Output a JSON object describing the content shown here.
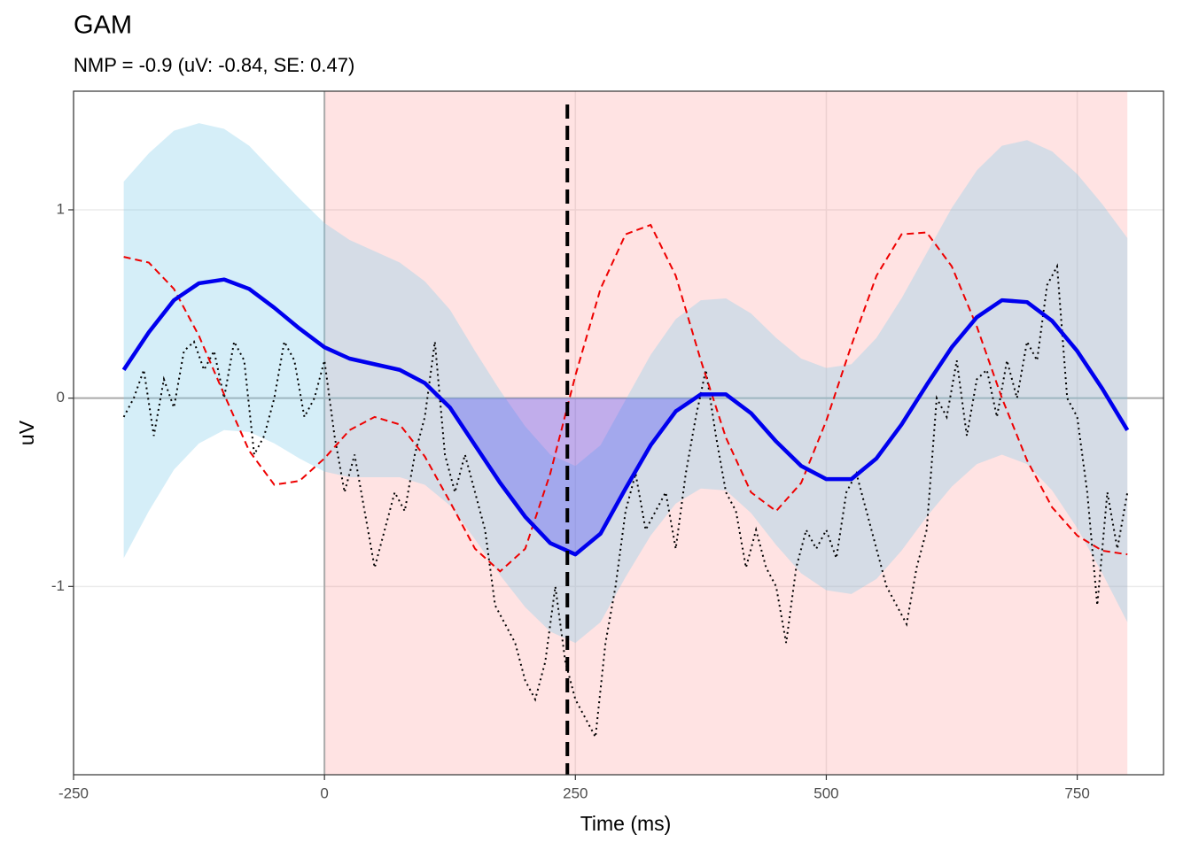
{
  "chart_data": {
    "type": "gam",
    "title": "GAM",
    "subtitle": "NMP = -0.9 (uV: -0.84, SE: 0.47)",
    "x_label": "Time (ms)",
    "y_label": "uV",
    "xlim": [
      -250,
      836
    ],
    "ylim": [
      -2.0,
      1.63
    ],
    "xticks": [
      -250,
      0,
      250,
      500,
      750
    ],
    "yticks": [
      -1,
      0,
      1
    ],
    "grid": true,
    "window": [
      0,
      800
    ],
    "window_color": "#ff0000",
    "highlight": [
      110,
      385
    ],
    "highlight_color": "#3333ff",
    "vline": 242,
    "ribbon_color": "#87ceeb",
    "fit_color": "#0000ee",
    "reference_color": "#ee0000",
    "raw_color": "#000000",
    "x": [
      -200,
      -175,
      -150,
      -125,
      -100,
      -75,
      -50,
      -25,
      0,
      25,
      50,
      75,
      100,
      125,
      150,
      175,
      200,
      225,
      250,
      275,
      300,
      325,
      350,
      375,
      400,
      425,
      450,
      475,
      500,
      525,
      550,
      575,
      600,
      625,
      650,
      675,
      700,
      725,
      750,
      775,
      800
    ],
    "fit": [
      0.15,
      0.35,
      0.52,
      0.61,
      0.63,
      0.58,
      0.48,
      0.37,
      0.27,
      0.21,
      0.18,
      0.15,
      0.08,
      -0.05,
      -0.25,
      -0.45,
      -0.63,
      -0.77,
      -0.83,
      -0.72,
      -0.48,
      -0.25,
      -0.07,
      0.02,
      0.02,
      -0.08,
      -0.23,
      -0.36,
      -0.43,
      -0.43,
      -0.32,
      -0.14,
      0.07,
      0.27,
      0.43,
      0.52,
      0.51,
      0.41,
      0.25,
      0.05,
      -0.17
    ],
    "upper": [
      1.15,
      1.3,
      1.42,
      1.46,
      1.43,
      1.34,
      1.2,
      1.06,
      0.93,
      0.84,
      0.78,
      0.72,
      0.62,
      0.47,
      0.25,
      0.04,
      -0.15,
      -0.3,
      -0.36,
      -0.25,
      -0.01,
      0.23,
      0.42,
      0.52,
      0.53,
      0.45,
      0.32,
      0.21,
      0.16,
      0.18,
      0.32,
      0.53,
      0.77,
      1.01,
      1.21,
      1.34,
      1.37,
      1.31,
      1.19,
      1.03,
      0.85
    ],
    "lower": [
      -0.85,
      -0.6,
      -0.38,
      -0.24,
      -0.17,
      -0.18,
      -0.24,
      -0.32,
      -0.39,
      -0.42,
      -0.42,
      -0.42,
      -0.46,
      -0.57,
      -0.75,
      -0.94,
      -1.11,
      -1.24,
      -1.3,
      -1.19,
      -0.95,
      -0.73,
      -0.56,
      -0.48,
      -0.49,
      -0.61,
      -0.78,
      -0.93,
      -1.02,
      -1.04,
      -0.96,
      -0.81,
      -0.63,
      -0.47,
      -0.35,
      -0.3,
      -0.35,
      -0.49,
      -0.69,
      -0.93,
      -1.19
    ],
    "reference": [
      0.75,
      0.72,
      0.58,
      0.33,
      0.02,
      -0.28,
      -0.46,
      -0.44,
      -0.32,
      -0.17,
      -0.1,
      -0.14,
      -0.31,
      -0.55,
      -0.8,
      -0.92,
      -0.8,
      -0.4,
      0.12,
      0.58,
      0.87,
      0.92,
      0.65,
      0.2,
      -0.21,
      -0.5,
      -0.6,
      -0.45,
      -0.12,
      0.28,
      0.65,
      0.87,
      0.88,
      0.7,
      0.38,
      0.0,
      -0.33,
      -0.58,
      -0.73,
      -0.81,
      -0.83
    ],
    "raw_x": [
      -200,
      -190,
      -180,
      -170,
      -160,
      -150,
      -140,
      -130,
      -120,
      -110,
      -100,
      -90,
      -80,
      -70,
      -60,
      -50,
      -40,
      -30,
      -20,
      -10,
      0,
      10,
      20,
      30,
      40,
      50,
      60,
      70,
      80,
      90,
      100,
      110,
      120,
      130,
      140,
      150,
      160,
      170,
      180,
      190,
      200,
      210,
      220,
      230,
      240,
      250,
      260,
      270,
      280,
      290,
      300,
      310,
      320,
      330,
      340,
      350,
      360,
      370,
      380,
      390,
      400,
      410,
      420,
      430,
      440,
      450,
      460,
      470,
      480,
      490,
      500,
      510,
      520,
      530,
      540,
      550,
      560,
      570,
      580,
      590,
      600,
      610,
      620,
      630,
      640,
      650,
      660,
      670,
      680,
      690,
      700,
      710,
      720,
      730,
      740,
      750,
      760,
      770,
      780,
      790,
      800
    ],
    "raw": [
      -0.1,
      0.0,
      0.15,
      -0.2,
      0.1,
      -0.05,
      0.25,
      0.3,
      0.15,
      0.25,
      0.0,
      0.3,
      0.2,
      -0.3,
      -0.2,
      0.0,
      0.3,
      0.2,
      -0.1,
      0.0,
      0.2,
      -0.2,
      -0.5,
      -0.3,
      -0.6,
      -0.9,
      -0.7,
      -0.5,
      -0.6,
      -0.3,
      -0.1,
      0.3,
      -0.3,
      -0.5,
      -0.3,
      -0.5,
      -0.7,
      -1.1,
      -1.2,
      -1.3,
      -1.5,
      -1.6,
      -1.4,
      -1.0,
      -1.4,
      -1.6,
      -1.7,
      -1.8,
      -1.3,
      -1.0,
      -0.6,
      -0.4,
      -0.7,
      -0.6,
      -0.5,
      -0.8,
      -0.4,
      -0.1,
      0.15,
      -0.2,
      -0.5,
      -0.6,
      -0.9,
      -0.7,
      -0.9,
      -1.0,
      -1.3,
      -0.9,
      -0.7,
      -0.8,
      -0.7,
      -0.85,
      -0.5,
      -0.4,
      -0.6,
      -0.8,
      -1.0,
      -1.1,
      -1.2,
      -0.9,
      -0.7,
      0.0,
      -0.1,
      0.2,
      -0.2,
      0.1,
      0.15,
      -0.1,
      0.2,
      0.0,
      0.3,
      0.2,
      0.6,
      0.7,
      0.0,
      -0.1,
      -0.5,
      -1.1,
      -0.5,
      -0.8,
      -0.5
    ]
  }
}
